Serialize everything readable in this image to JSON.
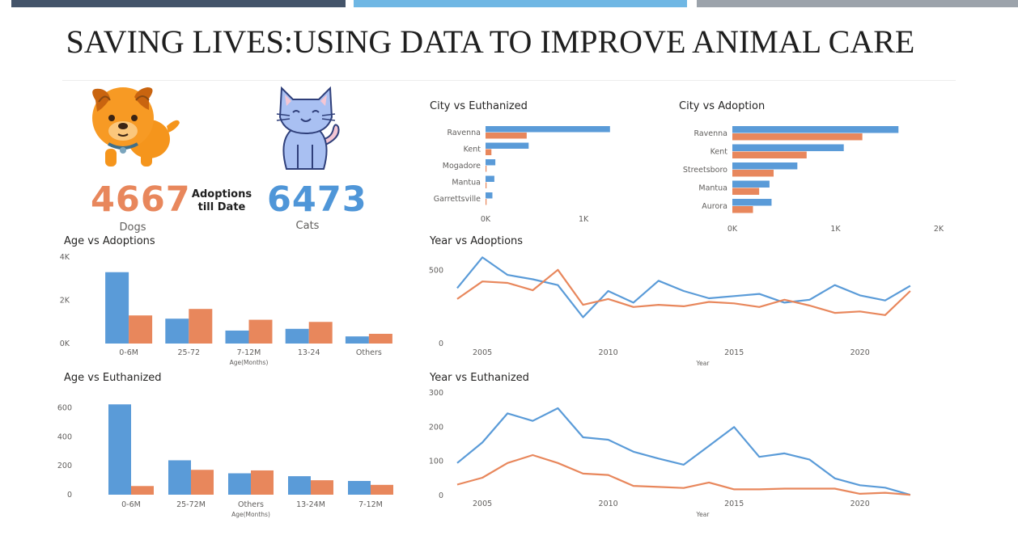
{
  "header": {
    "title": "SAVING LIVES:USING DATA TO IMPROVE ANIMAL CARE",
    "bar_colors": [
      "#44546a",
      "#6fb7e4",
      "#9ca3ab"
    ]
  },
  "kpis": {
    "dogs_value": "4667",
    "dogs_label": "Dogs",
    "cats_value": "6473",
    "cats_label": "Cats",
    "center_label_line1": "Adoptions",
    "center_label_line2": "till Date",
    "dogs_color": "#e8875c",
    "cats_color": "#4f96d8"
  },
  "icons": {
    "dog": "dog-icon",
    "cat": "cat-icon"
  },
  "colors": {
    "series1": "#5a9bd8",
    "series2": "#e8875c",
    "axis_text": "#605e5c"
  },
  "chart_data": [
    {
      "id": "city-euthanized",
      "type": "bar",
      "orientation": "horizontal",
      "title": "City vs Euthanized",
      "categories": [
        "Ravenna",
        "Kent",
        "Mogadore",
        "Mantua",
        "Garrettsville"
      ],
      "series": [
        {
          "values": [
            1270,
            440,
            100,
            90,
            70
          ]
        },
        {
          "values": [
            420,
            60,
            10,
            10,
            10
          ]
        }
      ],
      "xlim": [
        0,
        1800
      ],
      "xticks": [
        0,
        1000
      ],
      "xticklabels": [
        "0K",
        "1K"
      ]
    },
    {
      "id": "city-adoption",
      "type": "bar",
      "orientation": "horizontal",
      "title": "City vs Adoption",
      "categories": [
        "Ravenna",
        "Kent",
        "Streetsboro",
        "Mantua",
        "Aurora"
      ],
      "series": [
        {
          "values": [
            1610,
            1080,
            630,
            360,
            380
          ]
        },
        {
          "values": [
            1260,
            720,
            400,
            260,
            200
          ]
        }
      ],
      "xlim": [
        0,
        2000
      ],
      "xticks": [
        0,
        1000,
        2000
      ],
      "xticklabels": [
        "0K",
        "1K",
        "2K"
      ]
    },
    {
      "id": "age-adoptions",
      "type": "bar",
      "title": "Age vs Adoptions",
      "xlabel": "Age(Months)",
      "categories": [
        "0-6M",
        "25-72",
        "7-12M",
        "13-24",
        "Others"
      ],
      "series": [
        {
          "values": [
            3300,
            1150,
            600,
            680,
            330
          ]
        },
        {
          "values": [
            1300,
            1600,
            1100,
            1000,
            450
          ]
        }
      ],
      "ylim": [
        0,
        4000
      ],
      "yticks": [
        0,
        2000,
        4000
      ],
      "yticklabels": [
        "0K",
        "2K",
        "4K"
      ]
    },
    {
      "id": "age-euthanized",
      "type": "bar",
      "title": "Age vs Euthanized",
      "xlabel": "Age(Months)",
      "categories": [
        "0-6M",
        "25-72M",
        "Others",
        "13-24M",
        "7-12M"
      ],
      "series": [
        {
          "values": [
            625,
            238,
            148,
            128,
            95
          ]
        },
        {
          "values": [
            60,
            172,
            168,
            100,
            68
          ]
        }
      ],
      "ylim": [
        0,
        660
      ],
      "yticks": [
        0,
        200,
        400,
        600
      ],
      "yticklabels": [
        "0",
        "200",
        "400",
        "600"
      ]
    },
    {
      "id": "year-adoptions",
      "type": "line",
      "title": "Year vs Adoptions",
      "xlabel": "Year",
      "x": [
        2004,
        2005,
        2006,
        2007,
        2008,
        2009,
        2010,
        2011,
        2012,
        2013,
        2014,
        2015,
        2016,
        2017,
        2018,
        2019,
        2020,
        2021,
        2022
      ],
      "series": [
        {
          "values": [
            380,
            590,
            470,
            440,
            400,
            180,
            360,
            280,
            430,
            360,
            310,
            325,
            340,
            280,
            300,
            400,
            330,
            295,
            395
          ]
        },
        {
          "values": [
            305,
            425,
            415,
            365,
            505,
            265,
            305,
            250,
            265,
            255,
            285,
            275,
            250,
            300,
            260,
            210,
            220,
            195,
            360
          ]
        }
      ],
      "xlim": [
        2004,
        2023
      ],
      "ylim": [
        0,
        620
      ],
      "yticks": [
        0,
        500
      ],
      "xticks": [
        2005,
        2010,
        2015,
        2020
      ]
    },
    {
      "id": "year-euthanized",
      "type": "line",
      "title": "Year vs Euthanized",
      "xlabel": "Year",
      "x": [
        2004,
        2005,
        2006,
        2007,
        2008,
        2009,
        2010,
        2011,
        2012,
        2013,
        2014,
        2015,
        2016,
        2017,
        2018,
        2019,
        2020,
        2021,
        2022
      ],
      "series": [
        {
          "values": [
            95,
            155,
            240,
            218,
            255,
            170,
            163,
            128,
            108,
            90,
            145,
            200,
            113,
            123,
            105,
            50,
            30,
            23,
            2
          ]
        },
        {
          "values": [
            32,
            52,
            95,
            118,
            95,
            64,
            60,
            28,
            25,
            22,
            38,
            18,
            18,
            20,
            20,
            20,
            5,
            8,
            2
          ]
        }
      ],
      "xlim": [
        2004,
        2023
      ],
      "ylim": [
        0,
        300
      ],
      "yticks": [
        0,
        100,
        200,
        300
      ],
      "xticks": [
        2005,
        2010,
        2015,
        2020
      ]
    }
  ]
}
